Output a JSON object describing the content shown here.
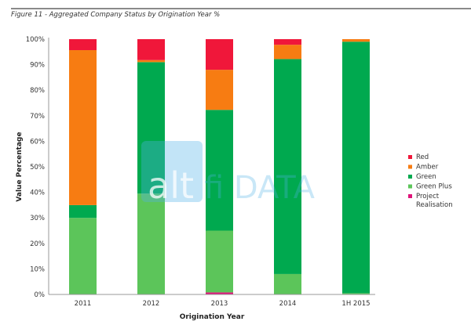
{
  "figure_title": "Figure 11 - Aggregated Company Status by Origination Year %",
  "watermark": "altfi DATA",
  "chart_data": {
    "type": "bar",
    "stacked": true,
    "title": "",
    "xlabel": "Origination Year",
    "ylabel": "Value Percentage",
    "ylim": [
      0,
      100
    ],
    "yticks": [
      "0%",
      "10%",
      "20%",
      "30%",
      "40%",
      "50%",
      "60%",
      "70%",
      "80%",
      "90%",
      "100%"
    ],
    "categories": [
      "2011",
      "2012",
      "2013",
      "2014",
      "1H 2015"
    ],
    "legend_position": "right",
    "grid": false,
    "series": [
      {
        "name": "Project Realisation",
        "color": "#e0147a",
        "values": [
          0,
          0,
          0.8,
          0,
          0
        ]
      },
      {
        "name": "Green Plus",
        "color": "#5cc55a",
        "values": [
          30,
          39.5,
          24.2,
          8,
          0.5
        ]
      },
      {
        "name": "Green",
        "color": "#00a94f",
        "values": [
          5,
          51.5,
          47.3,
          84.2,
          98.5
        ]
      },
      {
        "name": "Amber",
        "color": "#f77c12",
        "values": [
          60.7,
          0.8,
          15.7,
          5.6,
          1
        ]
      },
      {
        "name": "Red",
        "color": "#f0173a",
        "values": [
          4.3,
          8.2,
          12,
          2.2,
          0
        ]
      }
    ],
    "legend_order": [
      "Red",
      "Amber",
      "Green",
      "Green Plus",
      "Project Realisation"
    ]
  }
}
